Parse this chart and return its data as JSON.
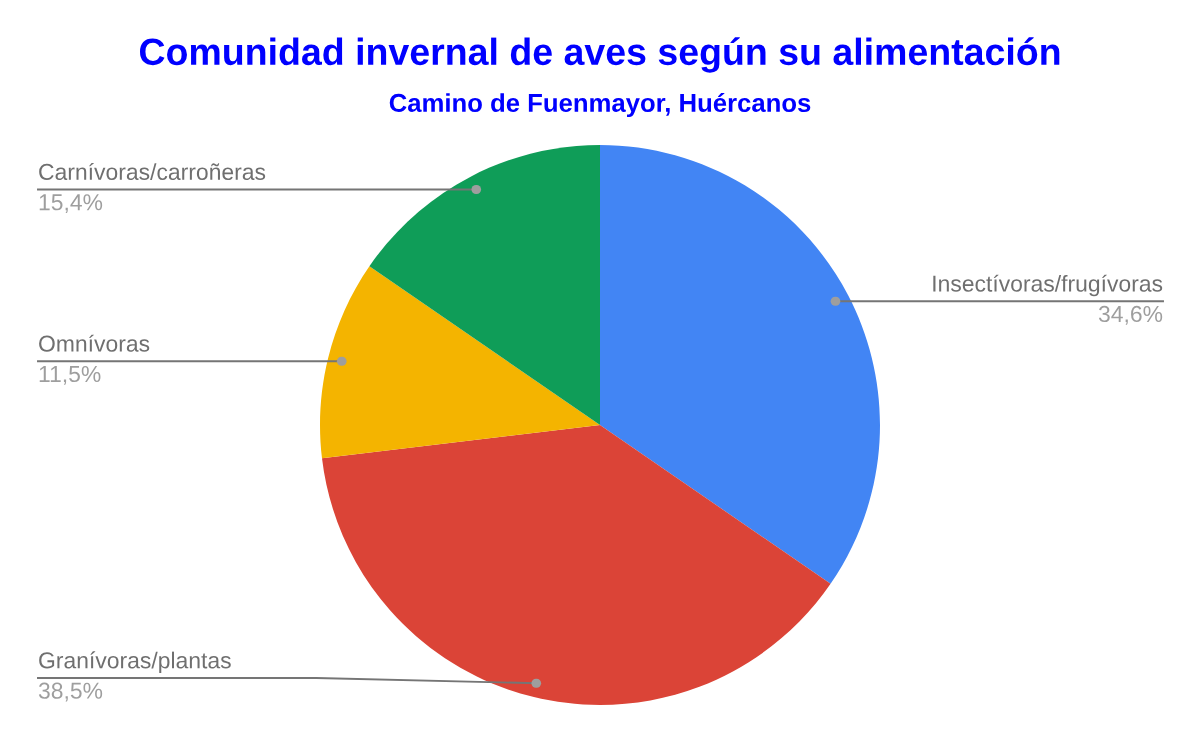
{
  "chart_data": {
    "type": "pie",
    "title": "Comunidad invernal de aves según su alimentación",
    "subtitle": "Camino de Fuenmayor, Huércanos",
    "categories": [
      "Insectívoras/frugívoras",
      "Granívoras/plantas",
      "Omnívoras",
      "Carnívoras/carroñeras"
    ],
    "values": [
      34.6,
      38.5,
      11.5,
      15.4
    ],
    "colors": [
      "#4285f4",
      "#db4437",
      "#f4b400",
      "#0f9d58"
    ],
    "value_labels": [
      "34,6%",
      "38,5%",
      "11,5%",
      "15,4%"
    ]
  }
}
